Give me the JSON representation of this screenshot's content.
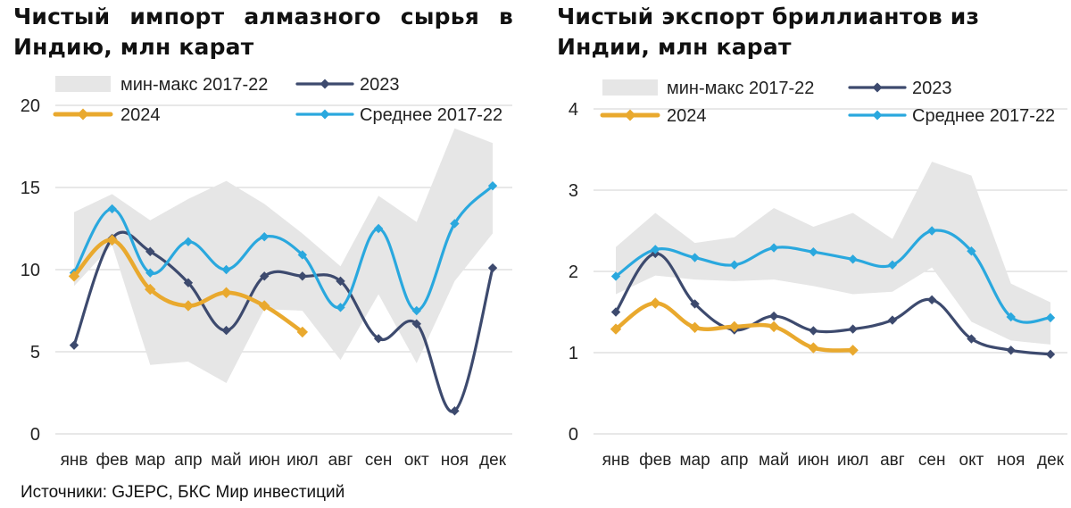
{
  "source": "Источники: GJEPC, БКС Мир инвестиций",
  "colors": {
    "band": "#e6e6e6",
    "y2023": "#3d4a6e",
    "y2024": "#e9a92e",
    "avg": "#2aa8de",
    "grid": "#d9d9d9"
  },
  "chart_data": [
    {
      "type": "line",
      "title": "Чистый импорт алмазного сырья в Индию, млн карат",
      "categories": [
        "янв",
        "фев",
        "мар",
        "апр",
        "май",
        "июн",
        "июл",
        "авг",
        "сен",
        "окт",
        "ноя",
        "дек"
      ],
      "ylim": [
        0,
        20
      ],
      "yticks": [
        "0",
        "5",
        "10",
        "15",
        "20"
      ],
      "grid": true,
      "legend": [
        {
          "key": "band",
          "label": "мин-макс 2017-22"
        },
        {
          "key": "y2023",
          "label": "2023"
        },
        {
          "key": "y2024",
          "label": "2024"
        },
        {
          "key": "avg",
          "label": "Среднее 2017-22"
        }
      ],
      "band": {
        "name": "мин-макс 2017-22",
        "min": [
          9.0,
          11.5,
          4.2,
          4.4,
          3.1,
          7.6,
          7.5,
          4.5,
          8.5,
          4.3,
          9.3,
          12.2
        ],
        "max": [
          13.5,
          14.6,
          13.0,
          14.3,
          15.4,
          14.0,
          12.2,
          10.2,
          14.5,
          12.9,
          18.6,
          17.7
        ]
      },
      "series": [
        {
          "name": "2023",
          "key": "y2023",
          "values": [
            5.4,
            11.9,
            11.1,
            9.2,
            6.3,
            9.6,
            9.6,
            9.3,
            5.8,
            6.7,
            1.4,
            10.1
          ]
        },
        {
          "name": "2024",
          "key": "y2024",
          "values": [
            9.6,
            11.8,
            8.8,
            7.8,
            8.6,
            7.8,
            6.2,
            null,
            null,
            null,
            null,
            null
          ]
        },
        {
          "name": "Среднее 2017-22",
          "key": "avg",
          "values": [
            9.8,
            13.7,
            9.8,
            11.7,
            10.0,
            12.0,
            10.9,
            7.7,
            12.5,
            7.5,
            12.8,
            15.1
          ]
        }
      ]
    },
    {
      "type": "line",
      "title": "Чистый экспорт бриллиантов из Индии, млн карат",
      "categories": [
        "янв",
        "фев",
        "мар",
        "апр",
        "май",
        "июн",
        "июл",
        "авг",
        "сен",
        "окт",
        "ноя",
        "дек"
      ],
      "ylim": [
        0,
        4
      ],
      "yticks": [
        "0",
        "1",
        "2",
        "3",
        "4"
      ],
      "grid": true,
      "legend": [
        {
          "key": "band",
          "label": "мин-макс 2017-22"
        },
        {
          "key": "y2023",
          "label": "2023"
        },
        {
          "key": "y2024",
          "label": "2024"
        },
        {
          "key": "avg",
          "label": "Среднее 2017-22"
        }
      ],
      "band": {
        "name": "мин-макс 2017-22",
        "min": [
          1.72,
          1.95,
          1.9,
          1.88,
          1.9,
          1.82,
          1.72,
          1.75,
          2.05,
          1.38,
          1.15,
          1.1
        ],
        "max": [
          2.3,
          2.72,
          2.35,
          2.42,
          2.78,
          2.55,
          2.72,
          2.4,
          3.35,
          3.18,
          1.85,
          1.62
        ]
      },
      "series": [
        {
          "name": "2023",
          "key": "y2023",
          "values": [
            1.5,
            2.22,
            1.6,
            1.28,
            1.45,
            1.27,
            1.29,
            1.4,
            1.65,
            1.17,
            1.03,
            0.98
          ]
        },
        {
          "name": "2024",
          "key": "y2024",
          "values": [
            1.29,
            1.61,
            1.31,
            1.32,
            1.32,
            1.06,
            1.03,
            null,
            null,
            null,
            null,
            null
          ]
        },
        {
          "name": "Среднее 2017-22",
          "key": "avg",
          "values": [
            1.94,
            2.27,
            2.17,
            2.08,
            2.29,
            2.24,
            2.15,
            2.08,
            2.5,
            2.25,
            1.44,
            1.43
          ]
        }
      ]
    }
  ]
}
